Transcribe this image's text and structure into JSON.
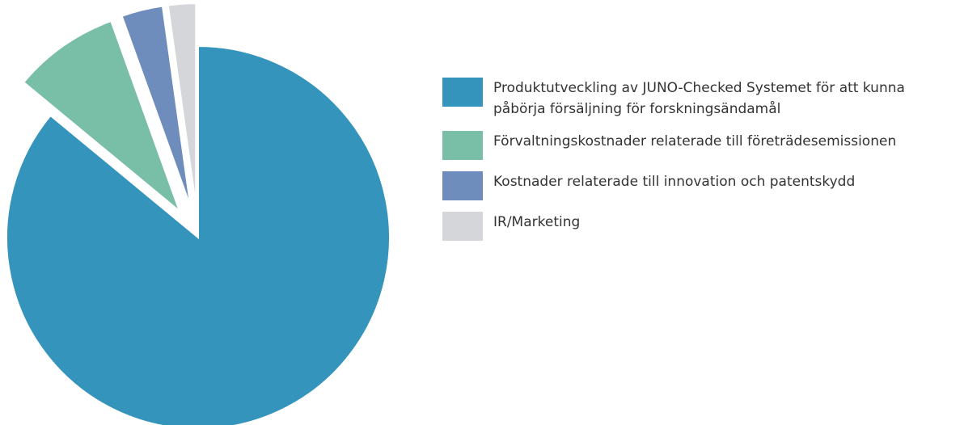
{
  "chart_data": {
    "type": "pie",
    "categories": [
      "Produktutveckling av JUNO-Checked Systemet för att kunna påbörja försäljning för forskningsändamål",
      "Förvaltningskostnader relaterade till företrädesemissionen",
      "Kostnader relaterade till innovation och patentskydd",
      "IR/Marketing"
    ],
    "values": [
      86,
      8.5,
      3.3,
      2.2
    ],
    "colors": [
      "#3594bb",
      "#79bea6",
      "#6e8dbc",
      "#d4d6d9"
    ],
    "legend": "right"
  }
}
